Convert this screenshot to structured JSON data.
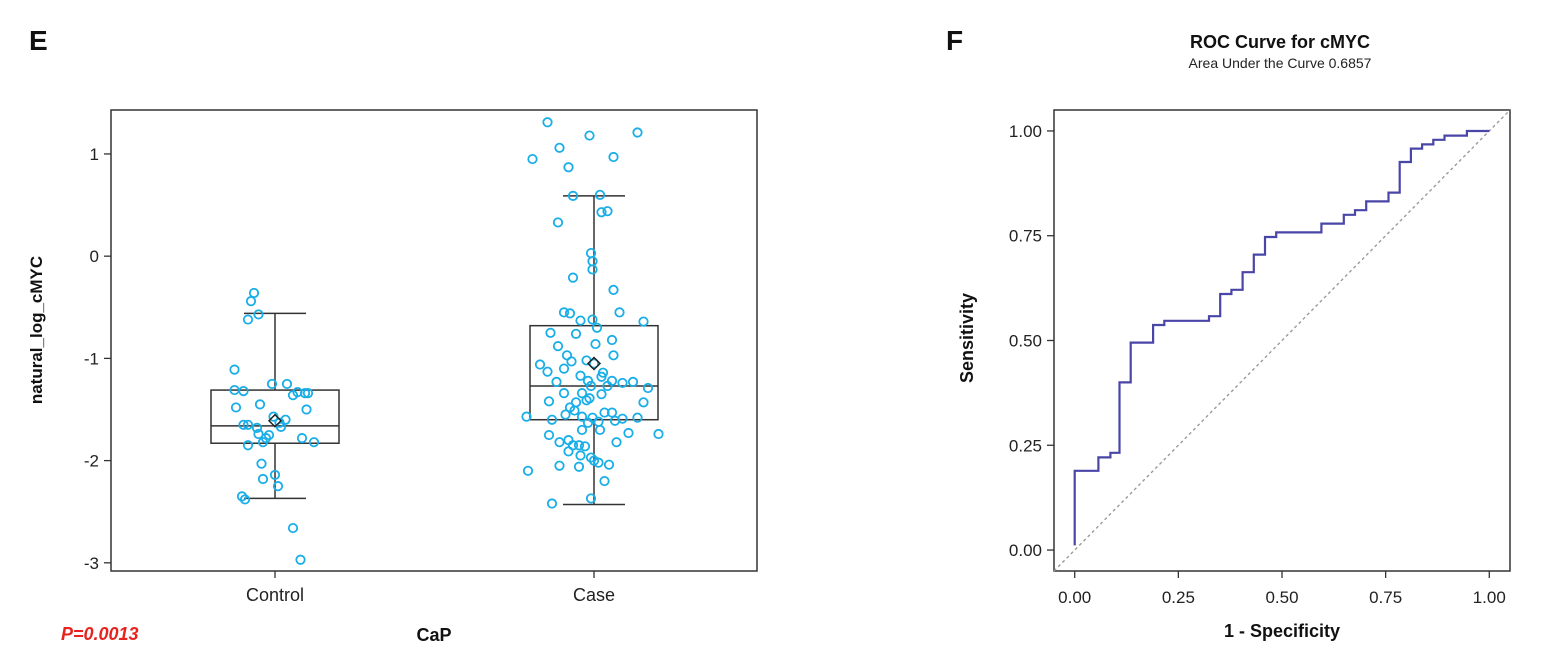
{
  "panels": {
    "left_letter": "E",
    "right_letter": "F",
    "p_value": "P=0.0013"
  },
  "colors": {
    "points": "#19aee8",
    "box": "#333333",
    "roc": "#4a46a8",
    "diagonal": "#9a9a9a",
    "pvalue": "#e8231f",
    "axis": "#333333"
  },
  "chart_data": [
    {
      "type": "box",
      "title": "",
      "xlabel": "CaP",
      "ylabel": "natural_log_cMYC",
      "categories": [
        "Control",
        "Case"
      ],
      "ylim": [
        -3.08,
        1.43
      ],
      "yticks": [
        1,
        0,
        -1,
        -2,
        -3
      ],
      "ytick_labels": [
        "1",
        "0",
        "-1",
        "-2",
        "-3"
      ],
      "box_stats": [
        {
          "category": "Control",
          "whisker_low": -2.37,
          "q1": -1.83,
          "median": -1.66,
          "q3": -1.31,
          "whisker_high": -0.56,
          "mean": -1.61
        },
        {
          "category": "Case",
          "whisker_low": -2.43,
          "q1": -1.6,
          "median": -1.27,
          "q3": -0.68,
          "whisker_high": 0.59,
          "mean": -1.05
        }
      ],
      "points": {
        "Control": [
          [
            -0.14,
            -0.36
          ],
          [
            -0.16,
            -0.44
          ],
          [
            -0.18,
            -0.62
          ],
          [
            -0.11,
            -0.57
          ],
          [
            -0.27,
            -1.11
          ],
          [
            -0.27,
            -1.31
          ],
          [
            -0.21,
            -1.32
          ],
          [
            -0.1,
            -1.45
          ],
          [
            -0.26,
            -1.48
          ],
          [
            -0.21,
            -1.65
          ],
          [
            -0.18,
            -1.65
          ],
          [
            -0.12,
            -1.68
          ],
          [
            -0.11,
            -1.74
          ],
          [
            -0.06,
            -1.78
          ],
          [
            -0.04,
            -1.75
          ],
          [
            -0.01,
            -1.57
          ],
          [
            0.03,
            -1.63
          ],
          [
            0.04,
            -1.67
          ],
          [
            0.07,
            -1.6
          ],
          [
            -0.08,
            -1.82
          ],
          [
            -0.18,
            -1.85
          ],
          [
            0.12,
            -1.36
          ],
          [
            0.15,
            -1.33
          ],
          [
            0.2,
            -1.34
          ],
          [
            0.22,
            -1.34
          ],
          [
            0.08,
            -1.25
          ],
          [
            -0.02,
            -1.25
          ],
          [
            0.21,
            -1.5
          ],
          [
            0.26,
            -1.82
          ],
          [
            0.18,
            -1.78
          ],
          [
            -0.09,
            -2.03
          ],
          [
            -0.08,
            -2.18
          ],
          [
            0.0,
            -2.14
          ],
          [
            0.02,
            -2.25
          ],
          [
            -0.22,
            -2.35
          ],
          [
            -0.2,
            -2.38
          ],
          [
            0.12,
            -2.66
          ],
          [
            0.17,
            -2.97
          ]
        ],
        "Case": [
          [
            -0.31,
            1.31
          ],
          [
            -0.41,
            0.95
          ],
          [
            -0.17,
            0.87
          ],
          [
            -0.03,
            1.18
          ],
          [
            0.13,
            0.97
          ],
          [
            0.29,
            1.21
          ],
          [
            -0.23,
            1.06
          ],
          [
            0.04,
            0.6
          ],
          [
            -0.14,
            0.59
          ],
          [
            0.05,
            0.43
          ],
          [
            0.09,
            0.44
          ],
          [
            -0.24,
            0.33
          ],
          [
            -0.02,
            0.03
          ],
          [
            -0.01,
            -0.05
          ],
          [
            -0.01,
            -0.13
          ],
          [
            -0.14,
            -0.21
          ],
          [
            0.13,
            -0.33
          ],
          [
            0.17,
            -0.55
          ],
          [
            -0.2,
            -0.55
          ],
          [
            -0.16,
            -0.56
          ],
          [
            -0.09,
            -0.63
          ],
          [
            -0.01,
            -0.62
          ],
          [
            0.02,
            -0.7
          ],
          [
            0.33,
            -0.64
          ],
          [
            -0.29,
            -0.75
          ],
          [
            -0.12,
            -0.76
          ],
          [
            -0.24,
            -0.88
          ],
          [
            0.01,
            -0.86
          ],
          [
            0.12,
            -0.82
          ],
          [
            -0.18,
            -0.97
          ],
          [
            -0.05,
            -1.02
          ],
          [
            0.13,
            -0.97
          ],
          [
            -0.36,
            -1.06
          ],
          [
            -0.31,
            -1.13
          ],
          [
            -0.2,
            -1.1
          ],
          [
            -0.15,
            -1.03
          ],
          [
            0.0,
            -1.05
          ],
          [
            0.06,
            -1.14
          ],
          [
            -0.09,
            -1.17
          ],
          [
            -0.04,
            -1.22
          ],
          [
            0.05,
            -1.18
          ],
          [
            0.12,
            -1.22
          ],
          [
            0.26,
            -1.23
          ],
          [
            0.36,
            -1.29
          ],
          [
            -0.25,
            -1.23
          ],
          [
            -0.2,
            -1.34
          ],
          [
            -0.02,
            -1.27
          ],
          [
            0.09,
            -1.27
          ],
          [
            0.19,
            -1.24
          ],
          [
            -0.08,
            -1.34
          ],
          [
            0.05,
            -1.35
          ],
          [
            0.33,
            -1.43
          ],
          [
            -0.3,
            -1.42
          ],
          [
            -0.12,
            -1.43
          ],
          [
            -0.03,
            -1.39
          ],
          [
            -0.05,
            -1.41
          ],
          [
            -0.16,
            -1.48
          ],
          [
            -0.13,
            -1.51
          ],
          [
            -0.19,
            -1.55
          ],
          [
            -0.08,
            -1.57
          ],
          [
            -0.01,
            -1.58
          ],
          [
            0.07,
            -1.53
          ],
          [
            0.12,
            -1.53
          ],
          [
            0.19,
            -1.59
          ],
          [
            -0.28,
            -1.6
          ],
          [
            -0.04,
            -1.63
          ],
          [
            0.03,
            -1.62
          ],
          [
            0.14,
            -1.61
          ],
          [
            -0.45,
            -1.57
          ],
          [
            -0.3,
            -1.75
          ],
          [
            -0.08,
            -1.7
          ],
          [
            0.04,
            -1.7
          ],
          [
            0.23,
            -1.73
          ],
          [
            0.15,
            -1.82
          ],
          [
            0.29,
            -1.58
          ],
          [
            0.43,
            -1.74
          ],
          [
            -0.23,
            -1.82
          ],
          [
            -0.17,
            -1.8
          ],
          [
            -0.14,
            -1.85
          ],
          [
            -0.1,
            -1.85
          ],
          [
            -0.06,
            -1.86
          ],
          [
            -0.17,
            -1.91
          ],
          [
            -0.09,
            -1.95
          ],
          [
            -0.02,
            -1.97
          ],
          [
            0.0,
            -2.0
          ],
          [
            0.03,
            -2.02
          ],
          [
            0.1,
            -2.04
          ],
          [
            -0.23,
            -2.05
          ],
          [
            -0.1,
            -2.06
          ],
          [
            -0.44,
            -2.1
          ],
          [
            0.07,
            -2.2
          ],
          [
            -0.02,
            -2.37
          ],
          [
            -0.28,
            -2.42
          ]
        ]
      }
    },
    {
      "type": "line",
      "title": "ROC Curve for cMYC",
      "subtitle": "Area Under the Curve 0.6857",
      "xlabel": "1 - Specificity",
      "ylabel": "Sensitivity",
      "xlim": [
        -0.05,
        1.05
      ],
      "ylim": [
        -0.05,
        1.05
      ],
      "xticks": [
        0,
        0.25,
        0.5,
        0.75,
        1
      ],
      "xtick_labels": [
        "0.00",
        "0.25",
        "0.50",
        "0.75",
        "1.00"
      ],
      "yticks": [
        0,
        0.25,
        0.5,
        0.75,
        1
      ],
      "ytick_labels": [
        "0.00",
        "0.25",
        "0.50",
        "0.75",
        "1.00"
      ],
      "auc": 0.6857,
      "series": [
        {
          "x": [
            0.0,
            0.0,
            0.0,
            0.057,
            0.057,
            0.086,
            0.086,
            0.108,
            0.108,
            0.135,
            0.135,
            0.189,
            0.189,
            0.216,
            0.216,
            0.243,
            0.27,
            0.297,
            0.324,
            0.324,
            0.351,
            0.351,
            0.378,
            0.378,
            0.405,
            0.405,
            0.432,
            0.432,
            0.459,
            0.459,
            0.486,
            0.486,
            0.514,
            0.541,
            0.568,
            0.595,
            0.595,
            0.622,
            0.649,
            0.649,
            0.676,
            0.676,
            0.703,
            0.703,
            0.73,
            0.757,
            0.757,
            0.784,
            0.784,
            0.811,
            0.811,
            0.838,
            0.838,
            0.865,
            0.865,
            0.892,
            0.892,
            0.919,
            0.919,
            0.946,
            0.946,
            0.973,
            1.0
          ],
          "y": [
            0.011,
            0.1,
            0.189,
            0.189,
            0.221,
            0.221,
            0.232,
            0.232,
            0.4,
            0.4,
            0.495,
            0.495,
            0.537,
            0.537,
            0.547,
            0.547,
            0.547,
            0.547,
            0.547,
            0.558,
            0.558,
            0.611,
            0.611,
            0.621,
            0.621,
            0.663,
            0.663,
            0.705,
            0.705,
            0.747,
            0.747,
            0.758,
            0.758,
            0.758,
            0.758,
            0.758,
            0.779,
            0.779,
            0.779,
            0.8,
            0.8,
            0.811,
            0.811,
            0.832,
            0.832,
            0.832,
            0.853,
            0.853,
            0.926,
            0.926,
            0.958,
            0.958,
            0.968,
            0.968,
            0.979,
            0.979,
            0.989,
            0.989,
            0.989,
            0.989,
            1.0,
            1.0,
            1.0
          ]
        }
      ],
      "reference_line": [
        [
          0,
          0
        ],
        [
          1,
          1
        ]
      ]
    }
  ]
}
